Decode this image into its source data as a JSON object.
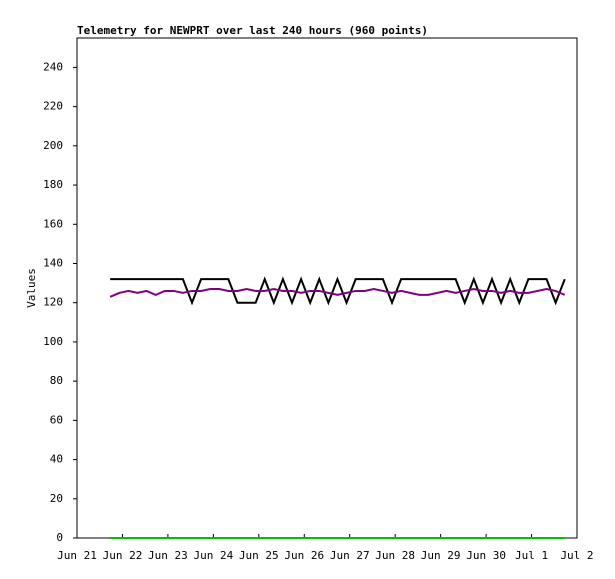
{
  "chart_data": {
    "type": "line",
    "title": "Telemetry for NEWPRT over last 240 hours (960 points)",
    "y_label": "Values",
    "x": [
      0.73,
      0.93,
      1.13,
      1.33,
      1.53,
      1.73,
      1.93,
      2.13,
      2.33,
      2.53,
      2.73,
      2.93,
      3.13,
      3.33,
      3.53,
      3.73,
      3.93,
      4.13,
      4.33,
      4.53,
      4.73,
      4.93,
      5.13,
      5.33,
      5.53,
      5.73,
      5.93,
      6.13,
      6.33,
      6.53,
      6.73,
      6.93,
      7.13,
      7.33,
      7.53,
      7.73,
      7.93,
      8.13,
      8.33,
      8.53,
      8.73,
      8.93,
      9.13,
      9.33,
      9.53,
      9.73,
      9.93,
      10.13,
      10.33,
      10.53,
      10.73
    ],
    "series": [
      {
        "color": "#000000",
        "values": [
          132,
          132,
          132,
          132,
          132,
          132,
          132,
          132,
          132,
          120,
          132,
          132,
          132,
          132,
          120,
          120,
          120,
          132,
          120,
          132,
          120,
          132,
          120,
          132,
          120,
          132,
          120,
          132,
          132,
          132,
          132,
          120,
          132,
          132,
          132,
          132,
          132,
          132,
          132,
          120,
          132,
          120,
          132,
          120,
          132,
          120,
          132,
          132,
          132,
          120,
          132
        ]
      },
      {
        "color": "#800080",
        "values": [
          123,
          125,
          126,
          125,
          126,
          124,
          126,
          126,
          125,
          126,
          126,
          127,
          127,
          126,
          126,
          127,
          126,
          126,
          127,
          126,
          126,
          125,
          126,
          126,
          125,
          124,
          125,
          126,
          126,
          127,
          126,
          125,
          126,
          125,
          124,
          124,
          125,
          126,
          125,
          126,
          127,
          126,
          126,
          125,
          126,
          125,
          125,
          126,
          127,
          126,
          124
        ]
      },
      {
        "color": "#00c000",
        "values": [
          0,
          0,
          0,
          0,
          0,
          0,
          0,
          0,
          0,
          0,
          0,
          0,
          0,
          0,
          0,
          0,
          0,
          0,
          0,
          0,
          0,
          0,
          0,
          0,
          0,
          0,
          0,
          0,
          0,
          0,
          0,
          0,
          0,
          0,
          0,
          0,
          0,
          0,
          0,
          0,
          0,
          0,
          0,
          0,
          0,
          0,
          0,
          0,
          0,
          0,
          0
        ]
      }
    ],
    "xlim": [
      0,
      11
    ],
    "xticks": [
      {
        "value": 0,
        "label": "Jun 21"
      },
      {
        "value": 1,
        "label": "Jun 22"
      },
      {
        "value": 2,
        "label": "Jun 23"
      },
      {
        "value": 3,
        "label": "Jun 24"
      },
      {
        "value": 4,
        "label": "Jun 25"
      },
      {
        "value": 5,
        "label": "Jun 26"
      },
      {
        "value": 6,
        "label": "Jun 27"
      },
      {
        "value": 7,
        "label": "Jun 28"
      },
      {
        "value": 8,
        "label": "Jun 29"
      },
      {
        "value": 9,
        "label": "Jun 30"
      },
      {
        "value": 10,
        "label": "Jul 1"
      },
      {
        "value": 11,
        "label": "Jul 2"
      }
    ],
    "ylim": [
      0,
      255
    ],
    "yticks": [
      0,
      20,
      40,
      60,
      80,
      100,
      120,
      140,
      160,
      180,
      200,
      220,
      240
    ]
  }
}
